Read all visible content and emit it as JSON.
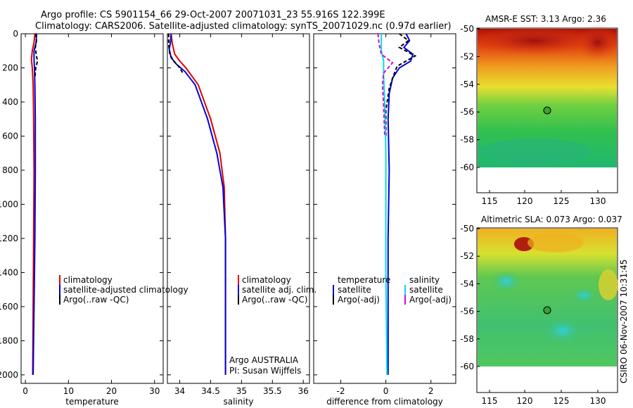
{
  "header": {
    "line1": "Argo profile: CS 5901154_66 29-Oct-2007 20071031_23 55.916S 122.399E",
    "line2": "Climatology: CARS2006. Satellite-adjusted climatology: synTS_20071029.nc (0.97d earlier)"
  },
  "credit": "CSIRO 06-Nov-2007 10:31:45",
  "colors": {
    "red": "#e00000",
    "blue": "#0000e0",
    "black": "#000000",
    "cyan": "#00e0e0",
    "magenta": "#e000e0"
  },
  "maps": [
    {
      "title": "AMSR-E SST: 3.13 Argo: 2.36",
      "yticks": [
        "-50",
        "-52",
        "-54",
        "-56",
        "-58",
        "-60"
      ],
      "xticks": [
        "115",
        "120",
        "125",
        "130"
      ]
    },
    {
      "title": "Altimetric SLA: 0.073 Argo: 0.037",
      "yticks": [
        "-50",
        "-52",
        "-54",
        "-56",
        "-58",
        "-60"
      ],
      "xticks": [
        "115",
        "120",
        "125",
        "130"
      ]
    }
  ],
  "chart_data": [
    {
      "type": "line",
      "xlabel": "temperature",
      "xlim": [
        -1,
        32
      ],
      "ylim": [
        0,
        2050
      ],
      "xticks": [
        0,
        10,
        20,
        30
      ],
      "xtick_labels": [
        "0",
        "10",
        "20",
        "30"
      ],
      "yticks": [
        0,
        200,
        400,
        600,
        800,
        1000,
        1200,
        1400,
        1600,
        1800,
        2000
      ],
      "ytick_labels": [
        "0",
        "200",
        "400",
        "600",
        "800",
        "1000",
        "1200",
        "1400",
        "1600",
        "1800",
        "2000"
      ],
      "legend": [
        "climatology",
        "satellite-adjusted climatology",
        "Argo(..raw -QC)"
      ],
      "series": [
        {
          "name": "climatology",
          "color": "red",
          "dash": "",
          "points": [
            [
              2.2,
              0
            ],
            [
              2.0,
              50
            ],
            [
              1.6,
              100
            ],
            [
              1.4,
              150
            ],
            [
              1.6,
              200
            ],
            [
              1.8,
              300
            ],
            [
              1.9,
              500
            ],
            [
              2.0,
              800
            ],
            [
              1.9,
              1200
            ],
            [
              1.8,
              1600
            ],
            [
              1.7,
              2000
            ]
          ]
        },
        {
          "name": "satellite-adjusted climatology",
          "color": "blue",
          "dash": "",
          "points": [
            [
              2.6,
              0
            ],
            [
              2.5,
              50
            ],
            [
              2.0,
              100
            ],
            [
              2.0,
              150
            ],
            [
              2.1,
              200
            ],
            [
              2.2,
              300
            ],
            [
              2.3,
              500
            ],
            [
              2.3,
              800
            ],
            [
              2.2,
              1200
            ],
            [
              2.0,
              1600
            ],
            [
              1.8,
              2000
            ]
          ]
        },
        {
          "name": "Argo(..raw -QC)",
          "color": "black",
          "dash": "5,3",
          "points": [
            [
              2.4,
              0
            ],
            [
              2.6,
              40
            ],
            [
              2.3,
              80
            ],
            [
              2.5,
              120
            ],
            [
              2.8,
              160
            ],
            [
              2.4,
              200
            ],
            [
              2.2,
              260
            ]
          ]
        }
      ]
    },
    {
      "type": "line",
      "xlabel": "salinity",
      "xlim": [
        33.8,
        36.1
      ],
      "ylim": [
        0,
        2050
      ],
      "xticks": [
        34,
        34.5,
        35,
        35.5,
        36
      ],
      "xtick_labels": [
        "34",
        "34.5",
        "35",
        "35.5",
        "36"
      ],
      "legend": [
        "climatology",
        "satellite adj. clim.",
        "Argo(..raw -QC)"
      ],
      "annotations": [
        "Argo AUSTRALIA",
        "PI: Susan Wijffels"
      ],
      "series": [
        {
          "name": "climatology",
          "color": "red",
          "dash": "",
          "points": [
            [
              33.86,
              0
            ],
            [
              33.88,
              60
            ],
            [
              33.92,
              120
            ],
            [
              34.0,
              160
            ],
            [
              34.1,
              200
            ],
            [
              34.3,
              300
            ],
            [
              34.5,
              500
            ],
            [
              34.65,
              700
            ],
            [
              34.72,
              900
            ],
            [
              34.74,
              1200
            ],
            [
              34.74,
              1600
            ],
            [
              34.74,
              2000
            ]
          ]
        },
        {
          "name": "satellite adj. clim.",
          "color": "blue",
          "dash": "",
          "points": [
            [
              33.86,
              0
            ],
            [
              33.85,
              50
            ],
            [
              33.83,
              90
            ],
            [
              33.86,
              140
            ],
            [
              33.95,
              180
            ],
            [
              34.08,
              220
            ],
            [
              34.25,
              300
            ],
            [
              34.45,
              500
            ],
            [
              34.6,
              700
            ],
            [
              34.7,
              900
            ],
            [
              34.74,
              1200
            ],
            [
              34.74,
              1600
            ],
            [
              34.74,
              2000
            ]
          ]
        },
        {
          "name": "Argo(..raw -QC)",
          "color": "black",
          "dash": "5,3",
          "points": [
            [
              33.82,
              0
            ],
            [
              33.82,
              60
            ],
            [
              33.84,
              120
            ],
            [
              33.9,
              160
            ],
            [
              33.98,
              190
            ],
            [
              34.05,
              230
            ]
          ]
        }
      ]
    },
    {
      "type": "line",
      "xlabel": "difference from climatology",
      "xlim": [
        -3.2,
        3.1
      ],
      "xticks": [
        -2,
        0,
        2
      ],
      "xtick_labels": [
        "-2",
        "0",
        "2"
      ],
      "legend_left_header": "temperature",
      "legend_right_header": "salinity",
      "legend": [
        "satellite",
        "Argo(-adj)",
        "satellite",
        "Argo(-adj)"
      ],
      "series": [
        {
          "name": "temperature satellite",
          "color": "blue",
          "dash": "",
          "points": [
            [
              0.9,
              0
            ],
            [
              1.05,
              40
            ],
            [
              0.8,
              80
            ],
            [
              1.2,
              120
            ],
            [
              1.1,
              160
            ],
            [
              0.6,
              200
            ],
            [
              0.3,
              260
            ],
            [
              0.15,
              350
            ],
            [
              0.1,
              500
            ],
            [
              0.15,
              800
            ],
            [
              0.1,
              1200
            ],
            [
              0.1,
              1600
            ],
            [
              0.1,
              2000
            ]
          ]
        },
        {
          "name": "temperature Argo(-adj)",
          "color": "black",
          "dash": "5,3",
          "points": [
            [
              0.6,
              0
            ],
            [
              1.0,
              40
            ],
            [
              0.6,
              80
            ],
            [
              1.3,
              130
            ],
            [
              0.5,
              190
            ],
            [
              0.3,
              260
            ],
            [
              0.15,
              320
            ],
            [
              0.0,
              450
            ],
            [
              0.0,
              600
            ]
          ]
        },
        {
          "name": "salinity satellite",
          "color": "cyan",
          "dash": "",
          "points": [
            [
              -0.2,
              0
            ],
            [
              -0.2,
              100
            ],
            [
              -0.1,
              160
            ],
            [
              -0.1,
              250
            ],
            [
              -0.05,
              400
            ],
            [
              0.0,
              700
            ],
            [
              0.0,
              1000
            ],
            [
              0.0,
              1400
            ],
            [
              0.05,
              2000
            ]
          ]
        },
        {
          "name": "salinity Argo(-adj)",
          "color": "magenta",
          "dash": "5,3",
          "points": [
            [
              -0.35,
              0
            ],
            [
              -0.3,
              60
            ],
            [
              -0.2,
              120
            ],
            [
              0.3,
              170
            ],
            [
              -0.1,
              230
            ],
            [
              -0.15,
              300
            ],
            [
              -0.1,
              420
            ],
            [
              -0.05,
              600
            ]
          ]
        }
      ]
    }
  ]
}
